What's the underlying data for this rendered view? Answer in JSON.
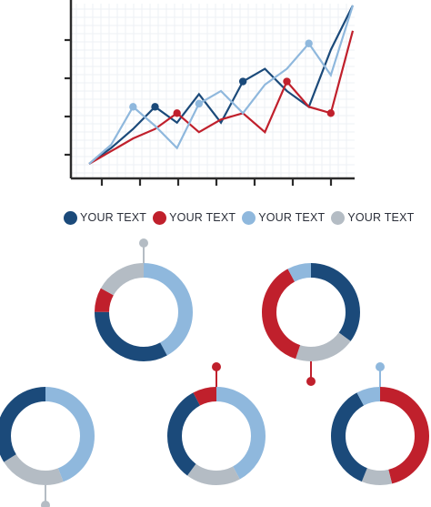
{
  "colors": {
    "navy": "#1b4a7a",
    "red": "#c0202c",
    "light_blue": "#8fb8dd",
    "gray": "#b4bcc4",
    "axis": "#2b2b2b"
  },
  "legend": [
    {
      "label": "YOUR TEXT",
      "color": "#1b4a7a"
    },
    {
      "label": "YOUR TEXT",
      "color": "#c0202c"
    },
    {
      "label": "YOUR TEXT",
      "color": "#8fb8dd"
    },
    {
      "label": "YOUR TEXT",
      "color": "#b4bcc4"
    }
  ],
  "chart_data": [
    {
      "type": "line",
      "title": "",
      "xlabel": "",
      "ylabel": "",
      "x": [
        0,
        1,
        2,
        3,
        4,
        5,
        6,
        7,
        8,
        9,
        10,
        11,
        12
      ],
      "xlim": [
        0,
        12
      ],
      "ylim": [
        0,
        5
      ],
      "x_ticks": 7,
      "y_ticks": 4,
      "grid": true,
      "series": [
        {
          "color": "#1b4a7a",
          "values": [
            0,
            0.5,
            1.1,
            1.8,
            1.3,
            2.2,
            1.3,
            2.6,
            3.0,
            2.3,
            1.8,
            3.6,
            5.0
          ],
          "markers": [
            3,
            7
          ]
        },
        {
          "color": "#c0202c",
          "values": [
            0,
            0.4,
            0.8,
            1.1,
            1.6,
            1.0,
            1.4,
            1.6,
            1.0,
            2.6,
            1.8,
            1.6,
            4.2
          ],
          "markers": [
            4,
            9,
            11
          ]
        },
        {
          "color": "#8fb8dd",
          "values": [
            0,
            0.6,
            1.8,
            1.2,
            0.5,
            1.9,
            2.3,
            1.6,
            2.5,
            3.0,
            3.8,
            2.8,
            5.0
          ],
          "markers": [
            2,
            5,
            10
          ]
        }
      ]
    },
    {
      "type": "pie",
      "donut": true,
      "stem": "top",
      "stem_color": "#b4bcc4",
      "segments": [
        {
          "color": "#8fb8dd",
          "value": 42
        },
        {
          "color": "#1b4a7a",
          "value": 33
        },
        {
          "color": "#c0202c",
          "value": 8
        },
        {
          "color": "#b4bcc4",
          "value": 17
        }
      ]
    },
    {
      "type": "pie",
      "donut": true,
      "stem": "bottom",
      "stem_color": "#c0202c",
      "segments": [
        {
          "color": "#1b4a7a",
          "value": 35
        },
        {
          "color": "#b4bcc4",
          "value": 20
        },
        {
          "color": "#c0202c",
          "value": 37
        },
        {
          "color": "#8fb8dd",
          "value": 8
        }
      ]
    },
    {
      "type": "pie",
      "donut": true,
      "stem": "bottom",
      "stem_color": "#b4bcc4",
      "segments": [
        {
          "color": "#8fb8dd",
          "value": 44
        },
        {
          "color": "#b4bcc4",
          "value": 22
        },
        {
          "color": "#1b4a7a",
          "value": 34
        }
      ]
    },
    {
      "type": "pie",
      "donut": true,
      "stem": "top",
      "stem_color": "#c0202c",
      "segments": [
        {
          "color": "#8fb8dd",
          "value": 42
        },
        {
          "color": "#b4bcc4",
          "value": 18
        },
        {
          "color": "#1b4a7a",
          "value": 32
        },
        {
          "color": "#c0202c",
          "value": 8
        }
      ]
    },
    {
      "type": "pie",
      "donut": true,
      "stem": "top",
      "stem_color": "#8fb8dd",
      "segments": [
        {
          "color": "#c0202c",
          "value": 46
        },
        {
          "color": "#b4bcc4",
          "value": 10
        },
        {
          "color": "#1b4a7a",
          "value": 36
        },
        {
          "color": "#8fb8dd",
          "value": 8
        }
      ]
    }
  ]
}
